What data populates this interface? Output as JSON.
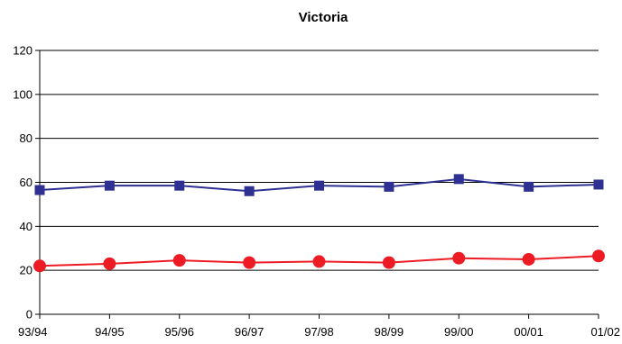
{
  "chart_data": {
    "type": "line",
    "title": "Victoria",
    "xlabel": "",
    "ylabel": "",
    "categories": [
      "93/94",
      "94/95",
      "95/96",
      "96/97",
      "97/98",
      "98/99",
      "99/00",
      "00/01",
      "01/02"
    ],
    "ylim": [
      0,
      120
    ],
    "yticks": [
      "0",
      "20",
      "40",
      "60",
      "80",
      "100",
      "120"
    ],
    "grid": "horizontal",
    "legend": "none",
    "series": [
      {
        "marker": "square",
        "color": "#2e3192",
        "values": [
          56.5,
          58.5,
          58.5,
          56,
          58.5,
          58,
          61.5,
          58,
          59
        ]
      },
      {
        "marker": "circle",
        "color": "#ed1c24",
        "values": [
          22,
          23,
          24.5,
          23.5,
          24,
          23.5,
          25.5,
          25,
          26.5
        ]
      }
    ]
  }
}
